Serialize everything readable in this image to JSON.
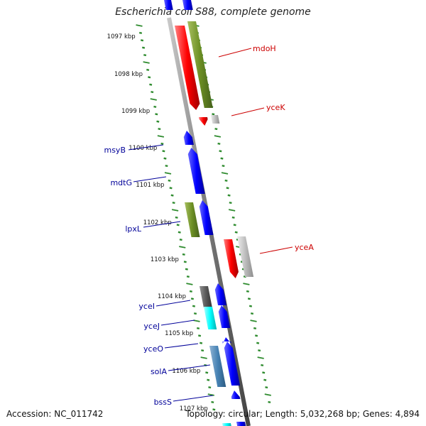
{
  "title": "Escherichia coli S88, complete genome",
  "footer": {
    "accession": "Accession: NC_011742",
    "summary": "Topology: circular; Length: 5,032,268 bp; Genes: 4,894"
  },
  "colors": {
    "tick": "#2e8b2e",
    "backbone": "#8a8a8a",
    "label_right": "#cc0000",
    "label_left": "#000099"
  },
  "kbp_labels": [
    "1097 kbp",
    "1098 kbp",
    "1099 kbp",
    "1100 kbp",
    "1101 kbp",
    "1102 kbp",
    "1103 kbp",
    "1104 kbp",
    "1105 kbp",
    "1106 kbp",
    "1107 kbp"
  ],
  "genes": [
    {
      "name": "mdoH",
      "strand": "+"
    },
    {
      "name": "yceK",
      "strand": "+"
    },
    {
      "name": "msyB",
      "strand": "-"
    },
    {
      "name": "mdtG",
      "strand": "-"
    },
    {
      "name": "lpxL",
      "strand": "-"
    },
    {
      "name": "yceA",
      "strand": "+"
    },
    {
      "name": "yceI",
      "strand": "-"
    },
    {
      "name": "yceJ",
      "strand": "-"
    },
    {
      "name": "yceO",
      "strand": "-"
    },
    {
      "name": "solA",
      "strand": "-"
    },
    {
      "name": "bssS",
      "strand": "-"
    }
  ]
}
